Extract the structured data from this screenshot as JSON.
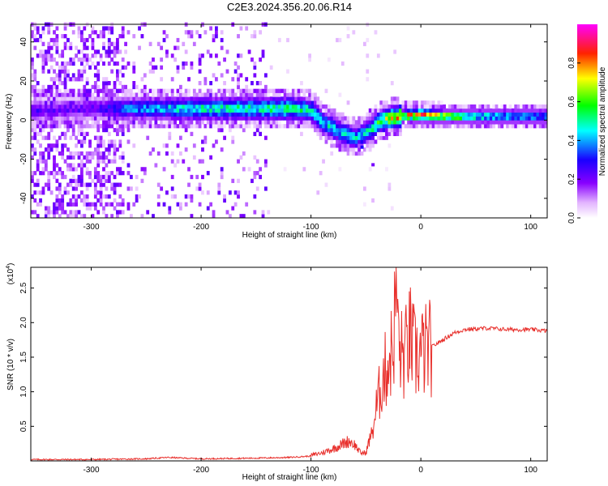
{
  "figure_title": "C2E3.2024.356.20.06.R14",
  "chart_data": [
    {
      "type": "heatmap",
      "name": "spectrogram",
      "title": "C2E3.2024.356.20.06.R14",
      "xlabel": "Height of straight line (km)",
      "ylabel": "Frequency (Hz)",
      "xlim": [
        -355,
        115
      ],
      "ylim": [
        -50,
        49
      ],
      "xticks": [
        -300,
        -200,
        -100,
        0,
        100
      ],
      "xtick_labels": [
        "-300",
        "-200",
        "-100",
        "0",
        "100"
      ],
      "yticks": [
        -40,
        -20,
        0,
        20,
        40
      ],
      "ytick_labels": [
        "-40",
        "-20",
        "0",
        "20",
        "40"
      ],
      "colorbar": {
        "label": "Normalized spectral amplitude",
        "range": [
          0,
          1
        ],
        "ticks": [
          0.0,
          0.2,
          0.4,
          0.6,
          0.8
        ],
        "tick_labels": [
          "0.0",
          "0.2",
          "0.4",
          "0.6",
          "0.8"
        ],
        "colormap": "rainbow (white-purple-blue-cyan-green-yellow-red-magenta)"
      },
      "main_signal_ridge": [
        {
          "x": -350,
          "freq": 4,
          "amp": 0.25
        },
        {
          "x": -300,
          "freq": 5,
          "amp": 0.25
        },
        {
          "x": -270,
          "freq": 5,
          "amp": 0.4
        },
        {
          "x": -200,
          "freq": 5,
          "amp": 0.55
        },
        {
          "x": -150,
          "freq": 5,
          "amp": 0.55
        },
        {
          "x": -120,
          "freq": 5,
          "amp": 0.6
        },
        {
          "x": -100,
          "freq": 4,
          "amp": 0.55
        },
        {
          "x": -90,
          "freq": -2,
          "amp": 0.5
        },
        {
          "x": -75,
          "freq": -7,
          "amp": 0.5
        },
        {
          "x": -60,
          "freq": -10,
          "amp": 0.45
        },
        {
          "x": -45,
          "freq": -5,
          "amp": 0.55
        },
        {
          "x": -40,
          "freq": -2,
          "amp": 0.6
        },
        {
          "x": -30,
          "freq": 0,
          "amp": 0.75
        },
        {
          "x": -20,
          "freq": 1,
          "amp": 0.85
        },
        {
          "x": 0,
          "freq": 2,
          "amp": 0.9
        },
        {
          "x": 20,
          "freq": 1,
          "amp": 0.8
        },
        {
          "x": 50,
          "freq": 1,
          "amp": 0.6
        },
        {
          "x": 80,
          "freq": 1,
          "amp": 0.5
        },
        {
          "x": 115,
          "freq": 1,
          "amp": 0.45
        }
      ],
      "noise_extent_x": [
        -355,
        -140
      ],
      "secondary_branch": [
        {
          "x": -55,
          "freq": -15,
          "amp": 0.3
        },
        {
          "x": -45,
          "freq": -24,
          "amp": 0.2
        }
      ]
    },
    {
      "type": "line",
      "name": "snr",
      "xlabel": "Height of straight line (km)",
      "ylabel": "SNR (10 * v/v)",
      "y_multiplier_label": "(x10",
      "y_multiplier_exponent": "4",
      "xlim": [
        -355,
        115
      ],
      "ylim": [
        0,
        2.8
      ],
      "xticks": [
        -300,
        -200,
        -100,
        0,
        100
      ],
      "xtick_labels": [
        "-300",
        "-200",
        "-100",
        "0",
        "100"
      ],
      "yticks": [
        0.5,
        1.0,
        1.5,
        2.0,
        2.5
      ],
      "ytick_labels": [
        "0.5",
        "1.0",
        "1.5",
        "2.0",
        "2.5"
      ],
      "color": "#e8302c",
      "series": [
        {
          "name": "SNR",
          "points": [
            [
              -355,
              0.02
            ],
            [
              -300,
              0.02
            ],
            [
              -250,
              0.03
            ],
            [
              -230,
              0.05
            ],
            [
              -200,
              0.03
            ],
            [
              -150,
              0.04
            ],
            [
              -120,
              0.05
            ],
            [
              -100,
              0.07
            ],
            [
              -90,
              0.1
            ],
            [
              -80,
              0.15
            ],
            [
              -70,
              0.22
            ],
            [
              -65,
              0.25
            ],
            [
              -60,
              0.2
            ],
            [
              -55,
              0.1
            ],
            [
              -50,
              0.1
            ],
            [
              -45,
              0.35
            ],
            [
              -40,
              0.8
            ],
            [
              -35,
              1.2
            ],
            [
              -30,
              1.4
            ],
            [
              -25,
              1.7
            ],
            [
              -22,
              2.7
            ],
            [
              -20,
              1.6
            ],
            [
              -15,
              1.5
            ],
            [
              -10,
              1.8
            ],
            [
              -5,
              1.5
            ],
            [
              0,
              1.55
            ],
            [
              5,
              1.6
            ],
            [
              10,
              1.65
            ],
            [
              15,
              1.7
            ],
            [
              20,
              1.75
            ],
            [
              30,
              1.85
            ],
            [
              40,
              1.9
            ],
            [
              60,
              1.92
            ],
            [
              80,
              1.9
            ],
            [
              100,
              1.9
            ],
            [
              115,
              1.88
            ]
          ]
        }
      ]
    }
  ]
}
